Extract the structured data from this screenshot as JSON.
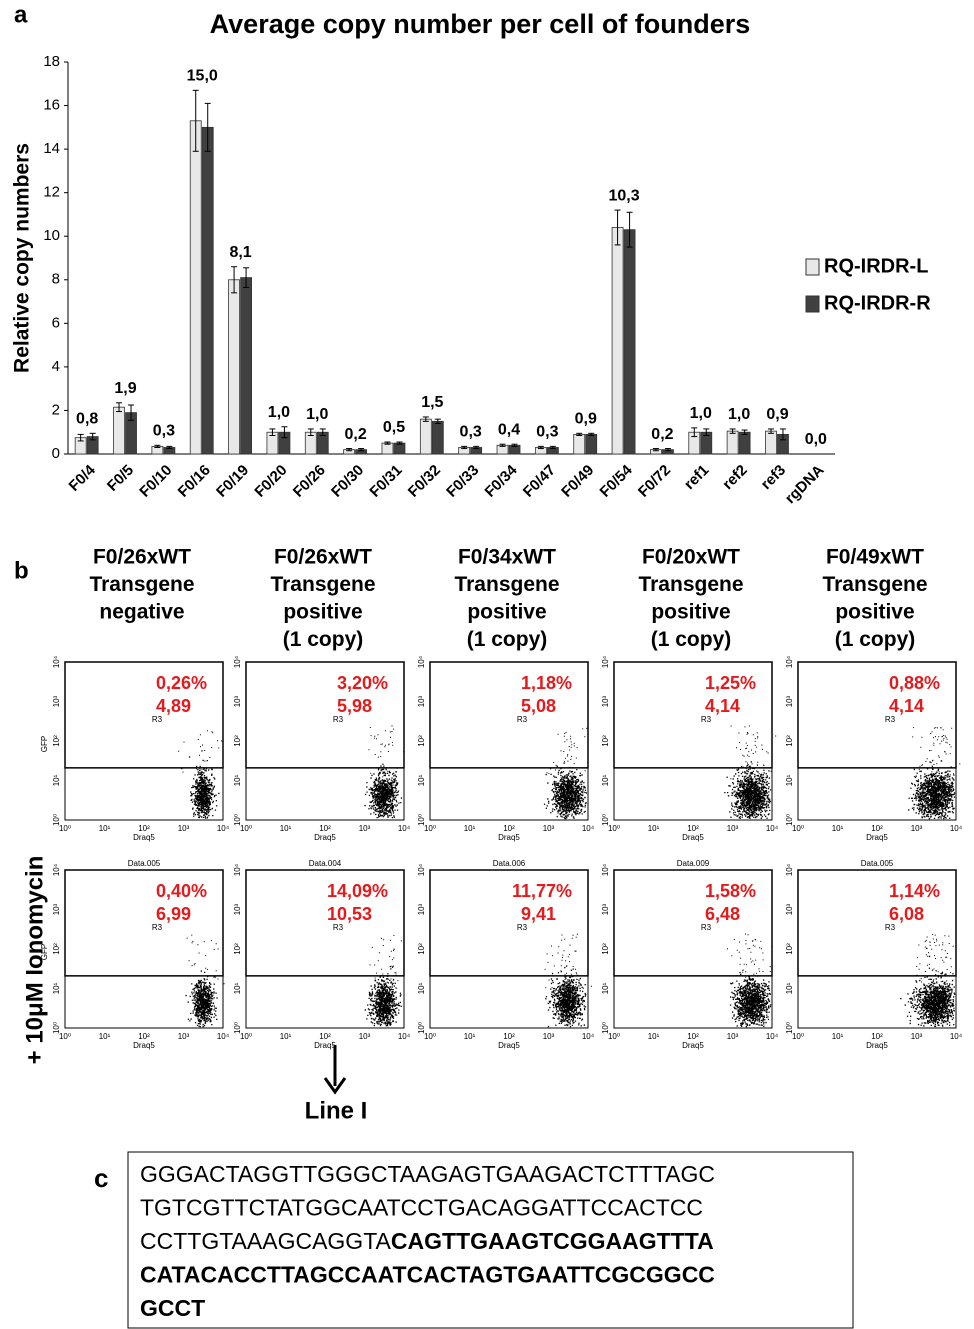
{
  "chart_data": {
    "type": "bar",
    "panel_label": "a",
    "title": "Average copy number per cell of founders",
    "y_label": "Relative copy numbers",
    "categories": [
      "F0/4",
      "F0/5",
      "F0/10",
      "F0/16",
      "F0/19",
      "F0/20",
      "F0/26",
      "F0/30",
      "F0/31",
      "F0/32",
      "F0/33",
      "F0/34",
      "F0/47",
      "F0/49",
      "F0/54",
      "F0/72",
      "ref1",
      "ref2",
      "ref3",
      "rgDNA"
    ],
    "series": [
      {
        "name": "RQ-IRDR-L",
        "color": "#e8e8e8",
        "values": [
          0.75,
          2.15,
          0.35,
          15.3,
          8.0,
          1.0,
          1.0,
          0.2,
          0.5,
          1.6,
          0.3,
          0.4,
          0.3,
          0.9,
          10.4,
          0.2,
          1.0,
          1.05,
          1.05,
          0.0
        ],
        "errors": [
          0.15,
          0.2,
          0.05,
          1.4,
          0.6,
          0.15,
          0.15,
          0.05,
          0.05,
          0.1,
          0.05,
          0.05,
          0.05,
          0.05,
          0.8,
          0.05,
          0.2,
          0.1,
          0.1,
          0.0
        ]
      },
      {
        "name": "RQ-IRDR-R",
        "color": "#404040",
        "values": [
          0.8,
          1.9,
          0.3,
          15.0,
          8.1,
          1.0,
          1.0,
          0.2,
          0.5,
          1.5,
          0.3,
          0.4,
          0.3,
          0.9,
          10.3,
          0.2,
          1.0,
          1.0,
          0.9,
          0.0
        ],
        "errors": [
          0.15,
          0.35,
          0.05,
          1.1,
          0.45,
          0.25,
          0.15,
          0.05,
          0.05,
          0.1,
          0.05,
          0.05,
          0.05,
          0.05,
          0.8,
          0.05,
          0.15,
          0.1,
          0.25,
          0.0
        ],
        "value_labels": [
          "0,8",
          "1,9",
          "0,3",
          "15,0",
          "8,1",
          "1,0",
          "1,0",
          "0,2",
          "0,5",
          "1,5",
          "0,3",
          "0,4",
          "0,3",
          "0,9",
          "10,3",
          "0,2",
          "1,0",
          "1,0",
          "0,9",
          "0,0"
        ]
      }
    ],
    "ylim": [
      0,
      18
    ],
    "yticks": [
      0,
      2,
      4,
      6,
      8,
      10,
      12,
      14,
      16,
      18
    ],
    "legend": "right"
  },
  "flow": {
    "panel_label": "b",
    "columns": [
      {
        "header": [
          "F0/26xWT",
          "Transgene",
          "negative"
        ]
      },
      {
        "header": [
          "F0/26xWT",
          "Transgene",
          "positive",
          "(1 copy)"
        ]
      },
      {
        "header": [
          "F0/34xWT",
          "Transgene",
          "positive",
          "(1 copy)"
        ]
      },
      {
        "header": [
          "F0/20xWT",
          "Transgene",
          "positive",
          "(1 copy)"
        ]
      },
      {
        "header": [
          "F0/49xWT",
          "Transgene",
          "positive",
          "(1 copy)"
        ]
      }
    ],
    "row_label": "+ 10μM Ionomycin",
    "x_label": "Draq5",
    "y_label": "GFP",
    "gate_label": "R3",
    "axis_ticks": [
      "10⁰",
      "10¹",
      "10²",
      "10³",
      "10⁴"
    ],
    "rows": [
      [
        {
          "percent": "0,26%",
          "value": "4,89"
        },
        {
          "percent": "3,20%",
          "value": "5,98"
        },
        {
          "percent": "1,18%",
          "value": "5,08"
        },
        {
          "percent": "1,25%",
          "value": "4,14"
        },
        {
          "percent": "0,88%",
          "value": "4,14"
        }
      ],
      [
        {
          "title": "Data.005",
          "percent": "0,40%",
          "value": "6,99"
        },
        {
          "title": "Data.004",
          "percent": "14,09%",
          "value": "10,53"
        },
        {
          "title": "Data.006",
          "percent": "11,77%",
          "value": "9,41"
        },
        {
          "title": "Data.009",
          "percent": "1,58%",
          "value": "6,48"
        },
        {
          "title": "Data.005",
          "percent": "1,14%",
          "value": "6,08"
        }
      ]
    ],
    "annotation": "Line I"
  },
  "sequence": {
    "panel_label": "c",
    "lines": [
      [
        {
          "text": "GGGACTAGGTTGGGCTAAGAGTGAAGACTCTTTAGC",
          "bold": false
        }
      ],
      [
        {
          "text": "TGTCGTTCTATGGCAATCCTGACAGGATTCCACTCC",
          "bold": false
        }
      ],
      [
        {
          "text": "CCTTGTAAAGCAGGTA",
          "bold": false
        },
        {
          "text": "CAGTTGAAGTCGGAAGTTTA",
          "bold": true
        }
      ],
      [
        {
          "text": "CATACACCTTAGCCAATCACTAGTGAATTCGCGGCC",
          "bold": true
        }
      ],
      [
        {
          "text": "GCCT",
          "bold": true
        }
      ]
    ]
  }
}
